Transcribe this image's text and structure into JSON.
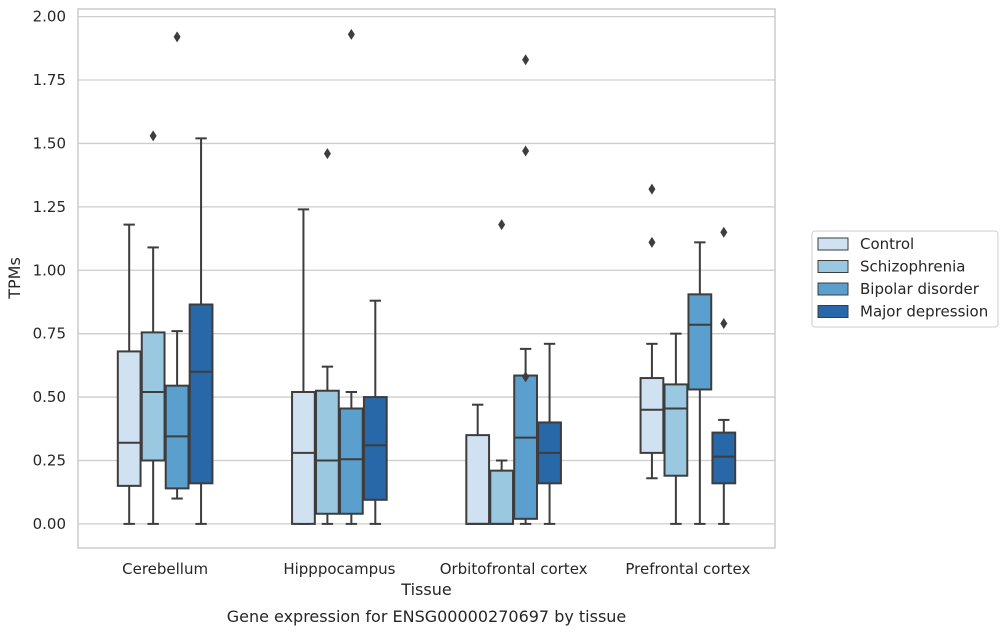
{
  "chart_data": {
    "type": "box",
    "title": "",
    "caption": "Gene expression for ENSG00000270697 by tissue",
    "xlabel": "Tissue",
    "ylabel": "TPMs",
    "ylim": [
      -0.095,
      2.03
    ],
    "yticks": [
      0.0,
      0.25,
      0.5,
      0.75,
      1.0,
      1.25,
      1.5,
      1.75,
      2.0
    ],
    "ytick_labels": [
      "0.00",
      "0.25",
      "0.50",
      "0.75",
      "1.00",
      "1.25",
      "1.50",
      "1.75",
      "2.00"
    ],
    "grid": "horizontal",
    "legend_position": "right",
    "categories": [
      "Cerebellum",
      "Hipppocampus",
      "Orbitofrontal cortex",
      "Prefrontal cortex"
    ],
    "series": [
      {
        "name": "Control",
        "color": "#d0e1f2",
        "boxes": [
          {
            "whislo": 0.0,
            "q1": 0.15,
            "med": 0.32,
            "q3": 0.68,
            "whishi": 1.18,
            "fliers": []
          },
          {
            "whislo": 0.0,
            "q1": 0.0,
            "med": 0.28,
            "q3": 0.52,
            "whishi": 1.24,
            "fliers": []
          },
          {
            "whislo": 0.0,
            "q1": 0.0,
            "med": 0.0,
            "q3": 0.35,
            "whishi": 0.47,
            "fliers": []
          },
          {
            "whislo": 0.18,
            "q1": 0.28,
            "med": 0.45,
            "q3": 0.575,
            "whishi": 0.71,
            "fliers": [
              1.11,
              1.32
            ]
          }
        ]
      },
      {
        "name": "Schizophrenia",
        "color": "#9ac8e0",
        "boxes": [
          {
            "whislo": 0.0,
            "q1": 0.25,
            "med": 0.52,
            "q3": 0.755,
            "whishi": 1.09,
            "fliers": [
              1.53
            ]
          },
          {
            "whislo": 0.0,
            "q1": 0.04,
            "med": 0.25,
            "q3": 0.525,
            "whishi": 0.62,
            "fliers": [
              1.46
            ]
          },
          {
            "whislo": 0.0,
            "q1": 0.0,
            "med": 0.0,
            "q3": 0.21,
            "whishi": 0.25,
            "fliers": [
              1.18
            ]
          },
          {
            "whislo": 0.0,
            "q1": 0.19,
            "med": 0.455,
            "q3": 0.55,
            "whishi": 0.75,
            "fliers": []
          }
        ]
      },
      {
        "name": "Bipolar disorder",
        "color": "#5a9fcd",
        "boxes": [
          {
            "whislo": 0.1,
            "q1": 0.14,
            "med": 0.345,
            "q3": 0.545,
            "whishi": 0.76,
            "fliers": [
              1.92
            ]
          },
          {
            "whislo": 0.0,
            "q1": 0.04,
            "med": 0.255,
            "q3": 0.455,
            "whishi": 0.52,
            "fliers": [
              1.93
            ]
          },
          {
            "whislo": 0.0,
            "q1": 0.02,
            "med": 0.34,
            "q3": 0.585,
            "whishi": 0.69,
            "fliers": [
              0.58,
              1.47,
              1.83
            ]
          },
          {
            "whislo": 0.0,
            "q1": 0.53,
            "med": 0.785,
            "q3": 0.905,
            "whishi": 1.11,
            "fliers": []
          }
        ]
      },
      {
        "name": "Major depression",
        "color": "#2867a8",
        "boxes": [
          {
            "whislo": 0.0,
            "q1": 0.16,
            "med": 0.6,
            "q3": 0.865,
            "whishi": 1.52,
            "fliers": []
          },
          {
            "whislo": 0.0,
            "q1": 0.095,
            "med": 0.31,
            "q3": 0.5,
            "whishi": 0.88,
            "fliers": []
          },
          {
            "whislo": 0.0,
            "q1": 0.16,
            "med": 0.28,
            "q3": 0.4,
            "whishi": 0.71,
            "fliers": []
          },
          {
            "whislo": 0.0,
            "q1": 0.16,
            "med": 0.265,
            "q3": 0.36,
            "whishi": 0.41,
            "fliers": [
              0.79,
              1.15
            ]
          }
        ]
      }
    ]
  }
}
